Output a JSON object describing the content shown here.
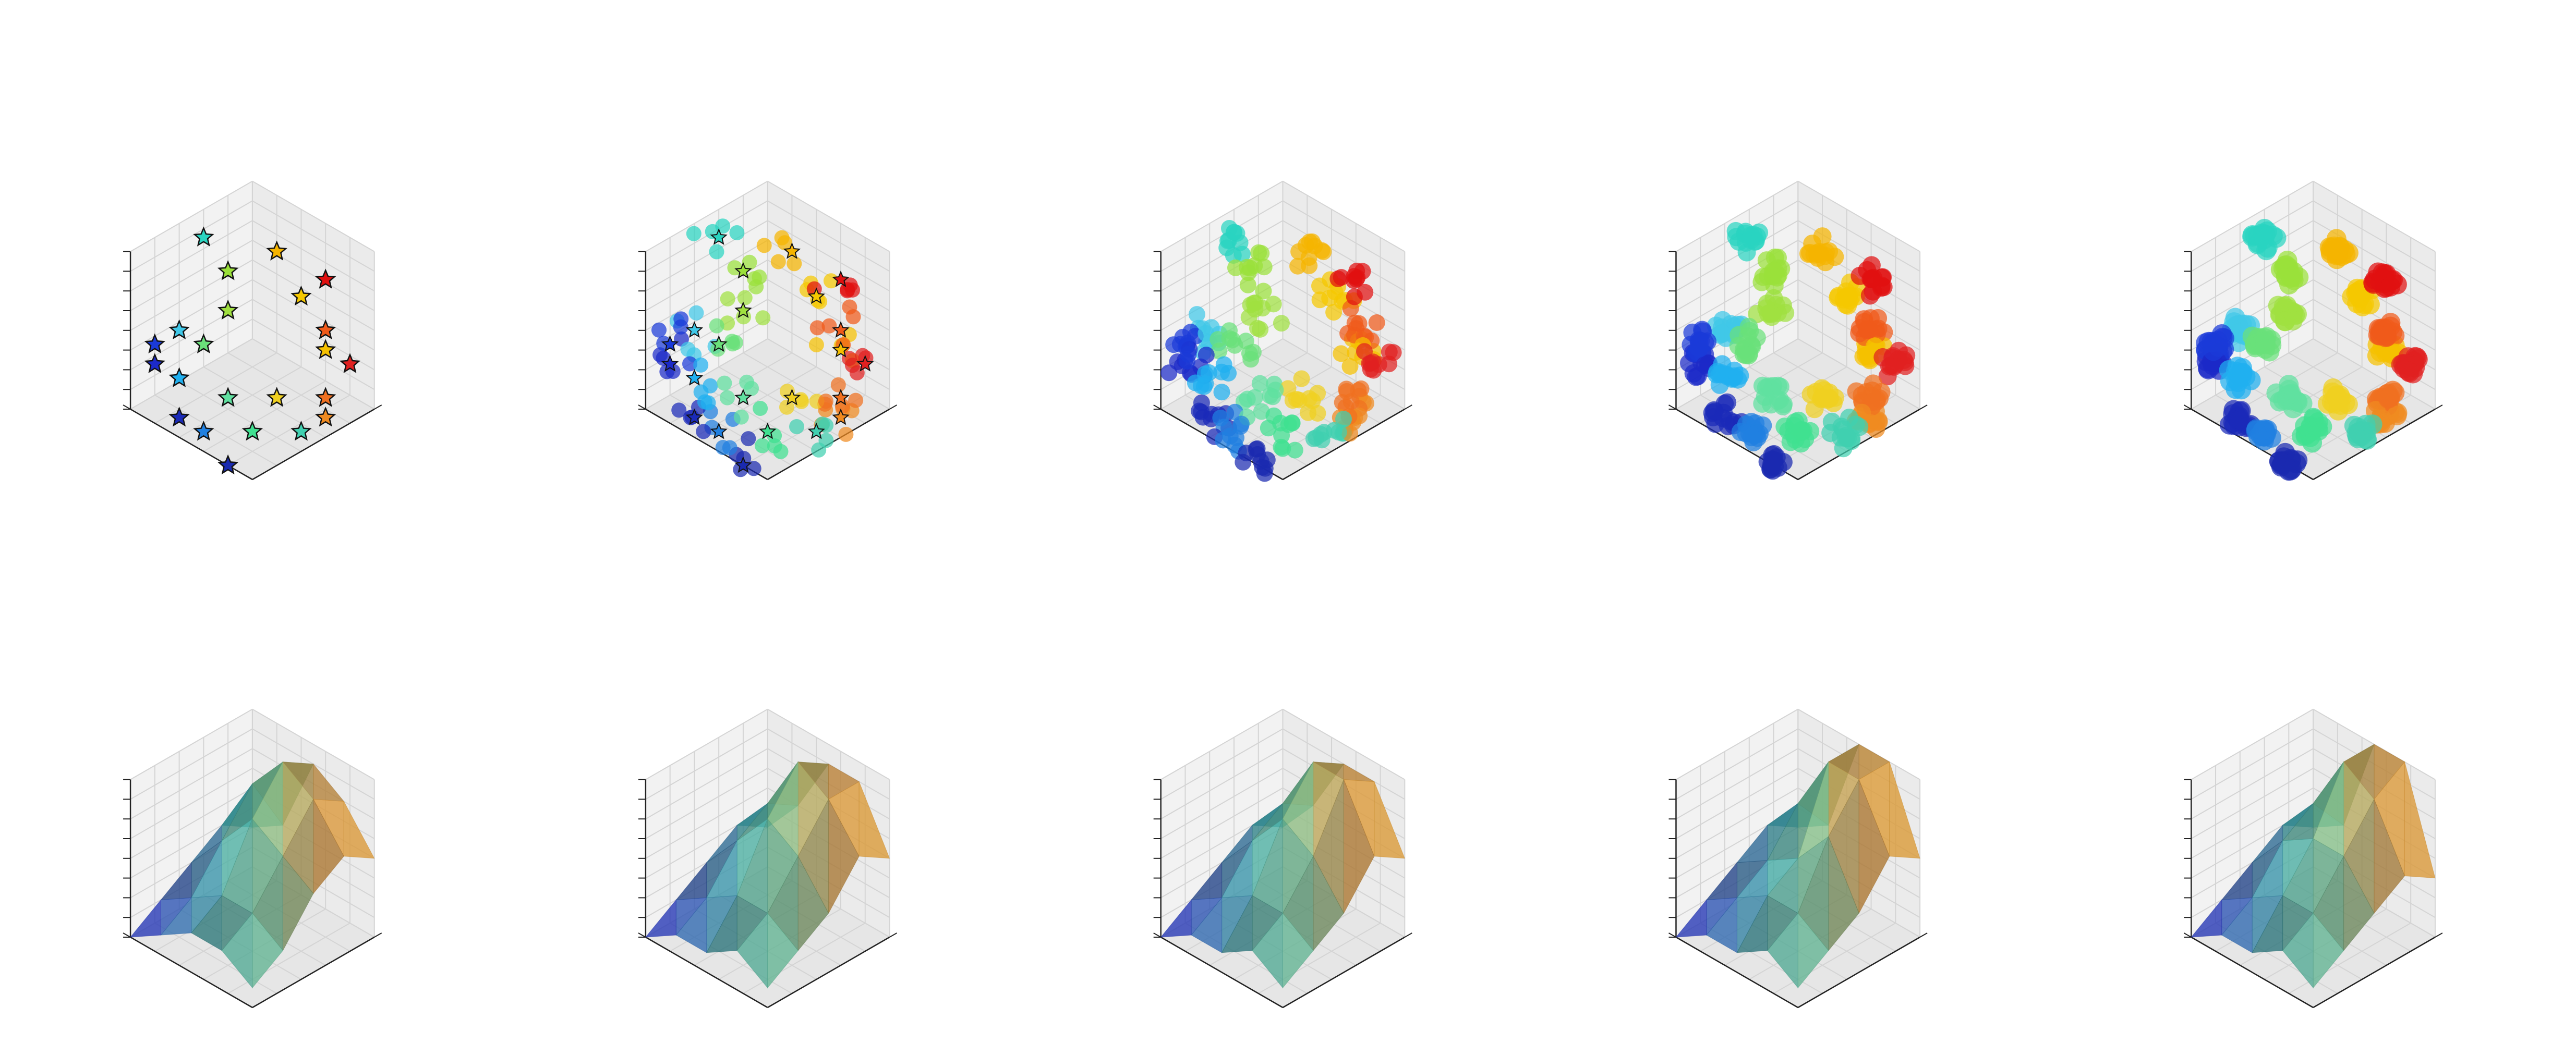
{
  "figure": {
    "rows": 2,
    "cols": 5,
    "background": "#ffffff",
    "pane_colors": [
      "#f2f2f2",
      "#ebebeb",
      "#e6e6e6"
    ],
    "grid_color": "#d4d4d4",
    "axis_color": "#222222",
    "tick_labels_shown": false,
    "colormap_points": "jet",
    "colormap_surface": "blue-teal-orange"
  },
  "chart_data": [
    {
      "type": "scatter",
      "projection": "3d",
      "marker": "star",
      "grid": true,
      "series": [
        {
          "x": 1,
          "y": 3,
          "z": 8,
          "color": "#2ad4c0"
        },
        {
          "x": 3,
          "y": 2,
          "z": 8,
          "color": "#f5b400"
        },
        {
          "x": 5,
          "y": 2,
          "z": 8,
          "color": "#e01010"
        },
        {
          "x": 2,
          "y": 3,
          "z": 7,
          "color": "#9ae03a"
        },
        {
          "x": 2,
          "y": 3,
          "z": 5,
          "color": "#a0e040"
        },
        {
          "x": 3,
          "y": 1,
          "z": 5,
          "color": "#f5c800"
        },
        {
          "x": 1,
          "y": 5,
          "z": 4,
          "color": "#1a3ad8"
        },
        {
          "x": 1,
          "y": 4,
          "z": 4,
          "color": "#40c8e8"
        },
        {
          "x": 2,
          "y": 4,
          "z": 4,
          "color": "#6ae07a"
        },
        {
          "x": 4,
          "y": 1,
          "z": 4,
          "color": "#f05a1a"
        },
        {
          "x": 4,
          "y": 1,
          "z": 3,
          "color": "#f5c000"
        },
        {
          "x": 5,
          "y": 1,
          "z": 3,
          "color": "#e02020"
        },
        {
          "x": 1,
          "y": 5,
          "z": 3,
          "color": "#1c2ac8"
        },
        {
          "x": 2,
          "y": 5,
          "z": 3,
          "color": "#20b0f0"
        },
        {
          "x": 5,
          "y": 2,
          "z": 2,
          "color": "#f07020"
        },
        {
          "x": 4,
          "y": 3,
          "z": 2,
          "color": "#f0d020"
        },
        {
          "x": 3,
          "y": 4,
          "z": 2,
          "color": "#60e0a0"
        },
        {
          "x": 2,
          "y": 5,
          "z": 1,
          "color": "#1a2ab8"
        },
        {
          "x": 3,
          "y": 5,
          "z": 1,
          "color": "#2080e0"
        },
        {
          "x": 4,
          "y": 4,
          "z": 1,
          "color": "#40e090"
        },
        {
          "x": 5,
          "y": 3,
          "z": 1,
          "color": "#40d0b0"
        },
        {
          "x": 5,
          "y": 2,
          "z": 1,
          "color": "#f08a20"
        },
        {
          "x": 4,
          "y": 5,
          "z": 0,
          "color": "#1a2ab0"
        }
      ]
    },
    {
      "type": "scatter",
      "projection": "3d",
      "marker": "circle",
      "grid": true,
      "spread": 0.4,
      "points_per_cluster": 5
    },
    {
      "type": "scatter",
      "projection": "3d",
      "marker": "circle",
      "grid": true,
      "spread": 0.3,
      "points_per_cluster": 10
    },
    {
      "type": "scatter",
      "projection": "3d",
      "marker": "circle",
      "grid": true,
      "spread": 0.22,
      "points_per_cluster": 14
    },
    {
      "type": "scatter",
      "projection": "3d",
      "marker": "circle",
      "grid": true,
      "spread": 0.18,
      "points_per_cluster": 16
    },
    {
      "type": "area",
      "projection": "3d",
      "surface": "trisurf",
      "grid": true,
      "z_grid": [
        [
          2,
          3,
          7,
          6,
          4
        ],
        [
          3,
          6,
          8,
          7,
          5
        ],
        [
          2,
          4,
          6,
          5,
          4
        ],
        [
          1,
          2,
          3,
          3,
          2
        ],
        [
          0,
          1,
          2,
          2,
          1
        ]
      ]
    },
    {
      "type": "area",
      "projection": "3d",
      "surface": "trisurf",
      "grid": true,
      "z_grid": [
        [
          2,
          4,
          7,
          7,
          4
        ],
        [
          3,
          5,
          8,
          7,
          5
        ],
        [
          2,
          4,
          6,
          5,
          3
        ],
        [
          1,
          2,
          3,
          3,
          2
        ],
        [
          0,
          1,
          1,
          2,
          1
        ]
      ]
    },
    {
      "type": "area",
      "projection": "3d",
      "surface": "trisurf",
      "grid": true,
      "z_grid": [
        [
          2,
          4,
          7,
          7,
          4
        ],
        [
          3,
          5,
          8,
          8,
          5
        ],
        [
          2,
          4,
          6,
          5,
          3
        ],
        [
          1,
          2,
          3,
          3,
          2
        ],
        [
          0,
          1,
          1,
          2,
          1
        ]
      ]
    },
    {
      "type": "area",
      "projection": "3d",
      "surface": "trisurf",
      "grid": true,
      "z_grid": [
        [
          2,
          3,
          8,
          8,
          4
        ],
        [
          3,
          5,
          8,
          8,
          5
        ],
        [
          2,
          3,
          4,
          6,
          3
        ],
        [
          1,
          2,
          3,
          3,
          2
        ],
        [
          0,
          1,
          1,
          2,
          1
        ]
      ]
    },
    {
      "type": "area",
      "projection": "3d",
      "surface": "trisurf",
      "grid": true,
      "z_grid": [
        [
          2,
          3,
          8,
          8,
          3
        ],
        [
          3,
          5,
          8,
          7,
          4
        ],
        [
          2,
          4,
          5,
          5,
          3
        ],
        [
          1,
          2,
          3,
          3,
          2
        ],
        [
          0,
          1,
          1,
          2,
          1
        ]
      ]
    }
  ]
}
